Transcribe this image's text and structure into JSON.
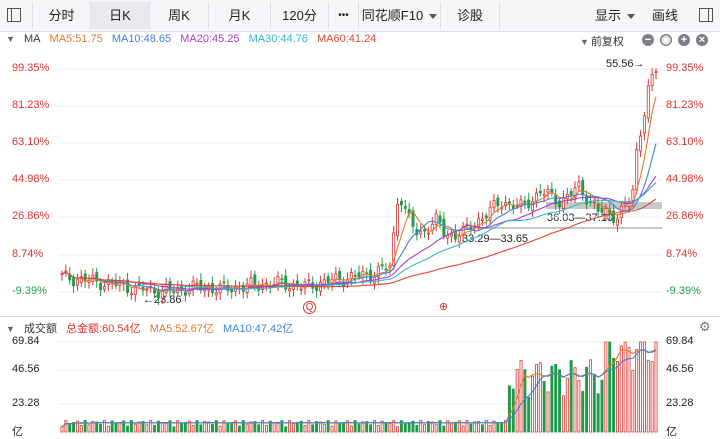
{
  "toolbar": {
    "tabs": [
      "分时",
      "日K",
      "周K",
      "月K",
      "120分",
      "•••",
      "同花顺F10",
      "诊股"
    ],
    "active_tab": "日K",
    "display_label": "显示",
    "draw_label": "画线"
  },
  "price_panel": {
    "indicator": "MA",
    "ma": [
      {
        "label": "MA5:51.75",
        "color": "#e8772e"
      },
      {
        "label": "MA10:48.65",
        "color": "#3d85d6"
      },
      {
        "label": "MA20:45.25",
        "color": "#b03cc1"
      },
      {
        "label": "MA30:44.76",
        "color": "#35b7c6"
      },
      {
        "label": "MA60:41.24",
        "color": "#e2472f"
      }
    ],
    "adjust_label": "前复权",
    "y_labels": [
      "99.35%",
      "81.23%",
      "63.10%",
      "44.98%",
      "26.86%",
      "8.74%",
      "-9.39%"
    ],
    "annotations": {
      "high": "55.56→",
      "low": "←23.86",
      "zone1": "36.03—37.10",
      "zone2": "33.29—33.65"
    },
    "markers": {
      "q": "Q",
      "gift": "⊕"
    }
  },
  "volume_panel": {
    "title": "成交额",
    "total": "总金额:60.54亿",
    "ma5": "MA5:52.67亿",
    "ma10": "MA10:47.42亿",
    "y_labels": [
      "69.84",
      "46.56",
      "23.28",
      "亿"
    ]
  },
  "colors": {
    "up": "#e2312d",
    "down": "#1f9b4a",
    "ma5": "#e8772e",
    "ma10": "#3d85d6",
    "ma20": "#b03cc1",
    "ma30": "#35b7c6",
    "ma60": "#e2472f",
    "y_up": "#e2312d",
    "y_down": "#1f9b4a"
  },
  "chart_data": {
    "type": "candlestick",
    "y_axis_pct": [
      99.35,
      81.23,
      63.1,
      44.98,
      26.86,
      8.74,
      -9.39
    ],
    "recent_high": 55.56,
    "period_low": 23.86,
    "zones": [
      "36.03—37.10",
      "33.29—33.65"
    ],
    "turnover_axis": [
      69.84,
      46.56,
      23.28
    ],
    "turnover_unit": "亿"
  }
}
